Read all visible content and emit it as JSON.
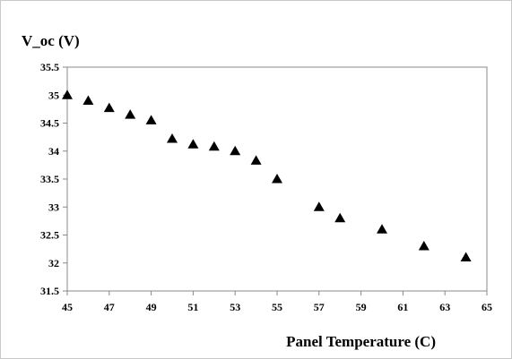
{
  "chart_data": {
    "type": "scatter",
    "xlabel": "Panel Temperature (C)",
    "ylabel": "V_oc (V)",
    "xlim": [
      45,
      65
    ],
    "ylim": [
      31.5,
      35.5
    ],
    "x_ticks": [
      "45",
      "47",
      "49",
      "51",
      "53",
      "55",
      "57",
      "59",
      "61",
      "63",
      "65"
    ],
    "y_ticks": [
      "35.5",
      "35",
      "34.5",
      "34",
      "33.5",
      "33",
      "32.5",
      "32",
      "31.5"
    ],
    "grid": false,
    "marker": "triangle",
    "marker_color": "#000000",
    "series": [
      {
        "points": [
          {
            "x": 45,
            "y": 35.0
          },
          {
            "x": 46,
            "y": 34.9
          },
          {
            "x": 47,
            "y": 34.77
          },
          {
            "x": 48,
            "y": 34.65
          },
          {
            "x": 49,
            "y": 34.55
          },
          {
            "x": 50,
            "y": 34.22
          },
          {
            "x": 51,
            "y": 34.12
          },
          {
            "x": 52,
            "y": 34.08
          },
          {
            "x": 53,
            "y": 34.0
          },
          {
            "x": 54,
            "y": 33.83
          },
          {
            "x": 55,
            "y": 33.5
          },
          {
            "x": 57,
            "y": 33.0
          },
          {
            "x": 58,
            "y": 32.8
          },
          {
            "x": 60,
            "y": 32.6
          },
          {
            "x": 62,
            "y": 32.3
          },
          {
            "x": 64,
            "y": 32.1
          }
        ]
      }
    ]
  }
}
